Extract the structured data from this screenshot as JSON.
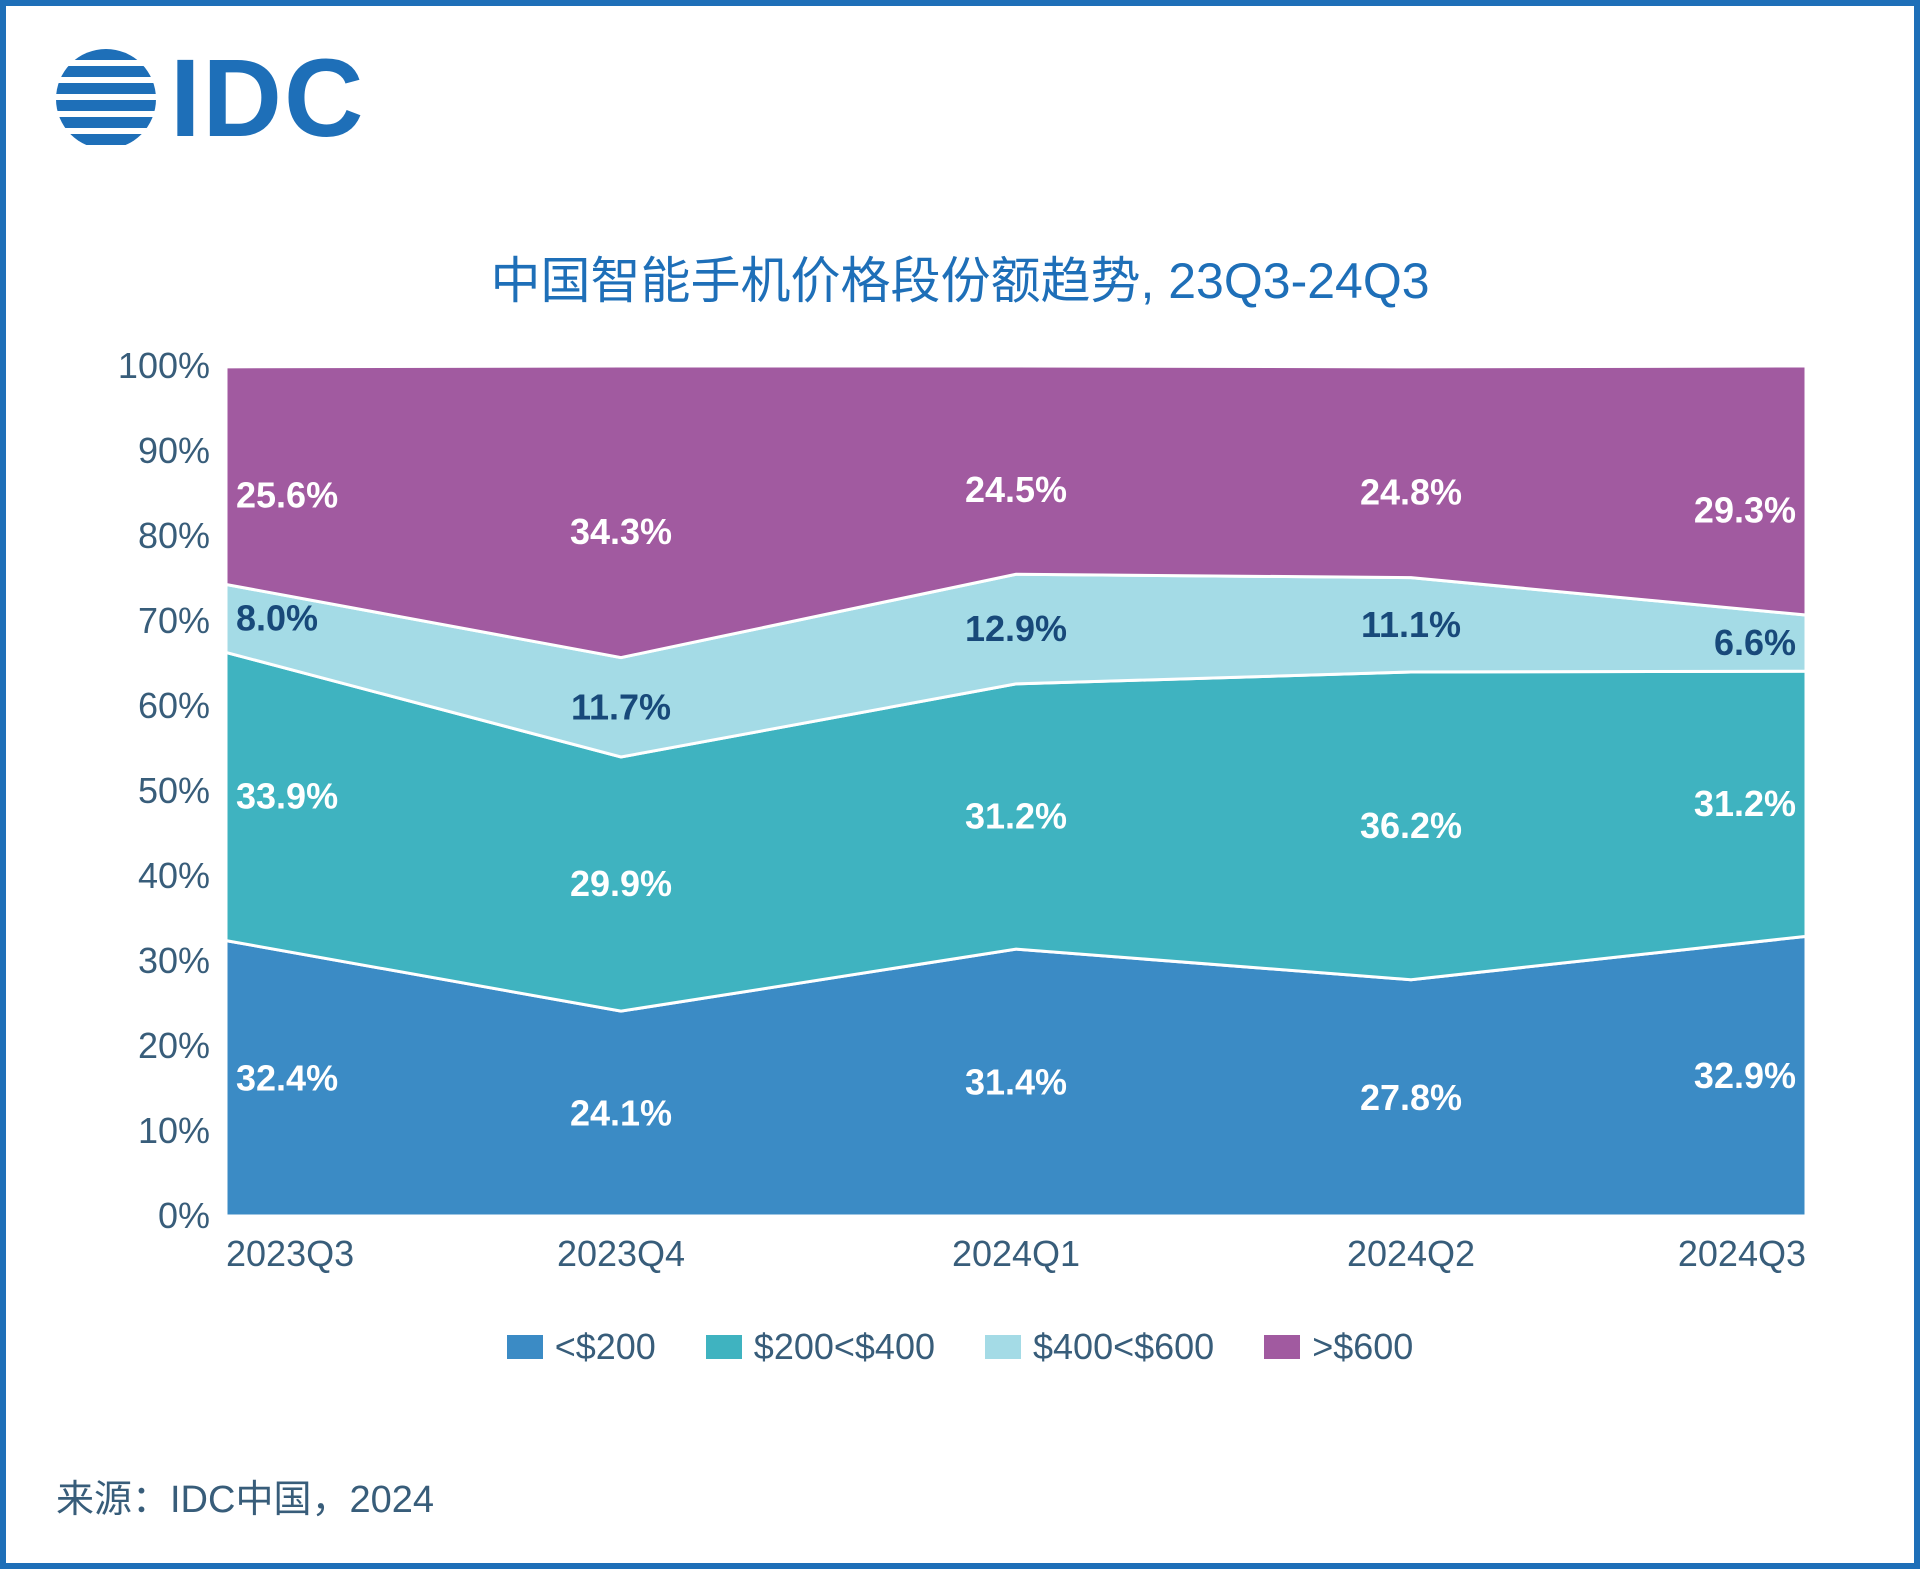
{
  "logo": {
    "text": "IDC",
    "color": "#1e6fb8"
  },
  "title": "中国智能手机价格段份额趋势, 23Q3-24Q3",
  "source": "来源：IDC中国，2024",
  "chart": {
    "type": "area",
    "categories": [
      "2023Q3",
      "2023Q4",
      "2024Q1",
      "2024Q2",
      "2024Q3"
    ],
    "series": [
      {
        "name": "<$200",
        "color": "#3b8bc5",
        "values": [
          32.4,
          24.1,
          31.4,
          27.8,
          32.9
        ]
      },
      {
        "name": "$200<$400",
        "color": "#3fb3c0",
        "values": [
          33.9,
          29.9,
          31.2,
          36.2,
          31.2
        ]
      },
      {
        "name": "$400<$600",
        "color": "#a4dbe6",
        "values": [
          8.0,
          11.7,
          12.9,
          11.1,
          6.6
        ]
      },
      {
        "name": ">$600",
        "color": "#a15aa0",
        "values": [
          25.6,
          34.3,
          24.5,
          24.8,
          29.3
        ]
      }
    ],
    "label_styles": [
      "white",
      "white",
      "blue",
      "white"
    ],
    "ylim": [
      0,
      100
    ],
    "ytick_step": 10,
    "background_color": "#ffffff",
    "grid_color": "#d9d9d9",
    "axis_text_color": "#385d7a",
    "axis_fontsize": 36,
    "title_fontsize": 50,
    "title_color": "#1e6fb8",
    "data_label_fontsize": 36,
    "data_label_color_light": "#ffffff",
    "data_label_color_dark": "#18497a",
    "legend_position": "bottom",
    "stroke_width": 3,
    "stroke_color": "#ffffff"
  }
}
